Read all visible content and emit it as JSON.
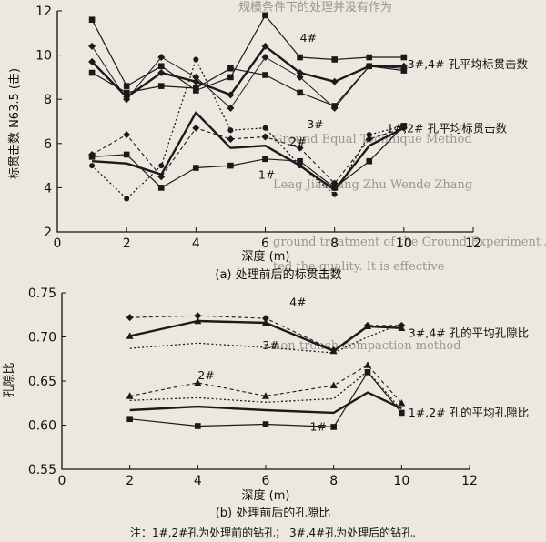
{
  "background_text": [
    "规模条件下的处理并没有作为",
    "Ground Equal Technique Method",
    "Leag Jianbang Zhu Wende Zhang",
    "ground treatment of the Ground Experiment Area",
    "ted the quality. It is effective",
    "non-trench compaction method"
  ],
  "note": "注：1#,2#孔为处理前的钻孔；  3#,4#孔为处理后的钻孔.",
  "chart_data": [
    {
      "type": "line",
      "caption": "(a) 处理前后的标贯击数",
      "xlabel": "深度 (m)",
      "ylabel": "标贯击数 N63.5 (击)",
      "xlim": [
        0,
        12
      ],
      "ylim": [
        2,
        12
      ],
      "xticks": [
        "0",
        "2",
        "4",
        "6",
        "8",
        "10",
        "12"
      ],
      "yticks": [
        "2",
        "4",
        "6",
        "8",
        "10",
        "12"
      ],
      "annotations": [
        {
          "text": "4#",
          "x": 7.0,
          "y": 10.6
        },
        {
          "text": "3#,4# 孔平均标贯击数",
          "x": 10.1,
          "y": 9.4
        },
        {
          "text": "3#",
          "x": 7.2,
          "y": 6.7
        },
        {
          "text": "1#,2# 孔平均标贯击数",
          "x": 9.5,
          "y": 6.5
        },
        {
          "text": "2#",
          "x": 6.7,
          "y": 5.9
        },
        {
          "text": "1#",
          "x": 5.8,
          "y": 4.4
        }
      ],
      "series": [
        {
          "line": "solid",
          "marker": "square",
          "x": [
            1,
            2,
            3,
            4,
            5,
            6,
            7,
            8,
            9,
            10
          ],
          "y": [
            9.2,
            8.3,
            8.6,
            8.5,
            9.4,
            9.1,
            8.3,
            7.7,
            9.5,
            9.3
          ]
        },
        {
          "line": "solid",
          "marker": "square",
          "x": [
            1,
            2,
            3,
            4,
            5,
            6,
            7,
            8,
            9,
            10
          ],
          "y": [
            11.6,
            8.6,
            9.5,
            8.4,
            9.0,
            11.8,
            9.9,
            9.8,
            9.9,
            9.9
          ]
        },
        {
          "line": "solid-thin",
          "marker": "diamond",
          "x": [
            1,
            2,
            3,
            4,
            5,
            6,
            7,
            8,
            9,
            10
          ],
          "y": [
            10.4,
            8.0,
            9.9,
            9.0,
            7.6,
            9.9,
            9.0,
            7.6,
            9.5,
            9.4
          ]
        },
        {
          "line": "solid-thick",
          "marker": "diamond",
          "x": [
            1,
            2,
            3,
            4,
            5,
            6,
            7,
            8,
            9,
            10
          ],
          "y": [
            9.7,
            8.1,
            9.2,
            8.8,
            8.2,
            10.4,
            9.2,
            8.8,
            9.5,
            9.5
          ]
        },
        {
          "line": "dotted",
          "marker": "circle",
          "x": [
            1,
            2,
            3,
            4,
            5,
            6,
            7,
            8,
            9,
            10
          ],
          "y": [
            5.0,
            3.5,
            5.0,
            9.8,
            6.6,
            6.7,
            5.0,
            3.7,
            6.4,
            6.8
          ]
        },
        {
          "line": "solid",
          "marker": "square",
          "x": [
            1,
            2,
            3,
            4,
            5,
            6,
            7,
            8,
            9,
            10
          ],
          "y": [
            5.4,
            5.5,
            4.0,
            4.9,
            5.0,
            5.3,
            5.2,
            4.0,
            5.2,
            6.8
          ]
        },
        {
          "line": "solid-thick",
          "marker": "none",
          "x": [
            1,
            2,
            3,
            4,
            5,
            6,
            7,
            8,
            9,
            10
          ],
          "y": [
            5.2,
            5.1,
            4.6,
            7.4,
            5.8,
            5.9,
            5.0,
            3.9,
            5.9,
            6.7
          ]
        },
        {
          "line": "dashed",
          "marker": "diamond",
          "x": [
            1,
            2,
            3,
            4,
            5,
            6,
            7,
            8,
            9,
            10
          ],
          "y": [
            5.5,
            6.4,
            4.5,
            6.7,
            6.2,
            6.3,
            5.8,
            4.2,
            6.2,
            6.7
          ]
        }
      ]
    },
    {
      "type": "line",
      "caption": "(b) 处理前后的孔隙比",
      "xlabel": "深度 (m)",
      "ylabel": "孔隙比",
      "xlim": [
        0,
        12
      ],
      "ylim": [
        0.55,
        0.75
      ],
      "xticks": [
        "0",
        "2",
        "4",
        "6",
        "8",
        "10",
        "12"
      ],
      "yticks": [
        "0.55",
        "0.60",
        "0.65",
        "0.70",
        "0.75"
      ],
      "annotations": [
        {
          "text": "4#",
          "x": 6.7,
          "y": 0.735
        },
        {
          "text": "3#,4# 孔的平均孔隙比",
          "x": 10.2,
          "y": 0.7
        },
        {
          "text": "3#",
          "x": 5.9,
          "y": 0.686
        },
        {
          "text": "2#",
          "x": 4.0,
          "y": 0.652
        },
        {
          "text": "1#,2# 孔的平均孔隙比",
          "x": 10.2,
          "y": 0.61
        },
        {
          "text": "1#",
          "x": 7.3,
          "y": 0.594
        }
      ],
      "series": [
        {
          "line": "dashed",
          "marker": "diamond",
          "x": [
            2,
            4,
            6,
            8,
            9,
            10
          ],
          "y": [
            0.722,
            0.724,
            0.721,
            0.685,
            0.713,
            0.713
          ]
        },
        {
          "line": "solid-thick",
          "marker": "triangle",
          "x": [
            2,
            4,
            6,
            8,
            9,
            10
          ],
          "y": [
            0.701,
            0.718,
            0.716,
            0.684,
            0.712,
            0.71
          ]
        },
        {
          "line": "dotted",
          "marker": "none",
          "x": [
            2,
            4,
            6,
            8,
            9,
            10
          ],
          "y": [
            0.687,
            0.693,
            0.688,
            0.682,
            0.7,
            0.715
          ]
        },
        {
          "line": "dashed",
          "marker": "triangle",
          "x": [
            2,
            4,
            6,
            8,
            9,
            10
          ],
          "y": [
            0.633,
            0.648,
            0.633,
            0.645,
            0.668,
            0.625
          ]
        },
        {
          "line": "solid-thick",
          "marker": "none",
          "x": [
            2,
            4,
            6,
            8,
            9,
            10
          ],
          "y": [
            0.617,
            0.621,
            0.617,
            0.614,
            0.637,
            0.619
          ]
        },
        {
          "line": "solid",
          "marker": "square",
          "x": [
            2,
            4,
            6,
            8,
            9,
            10
          ],
          "y": [
            0.607,
            0.599,
            0.601,
            0.598,
            0.66,
            0.614
          ]
        },
        {
          "line": "dotted",
          "marker": "none",
          "x": [
            2,
            4,
            6,
            8,
            9,
            10
          ],
          "y": [
            0.628,
            0.631,
            0.626,
            0.63,
            0.661,
            0.617
          ]
        }
      ]
    }
  ]
}
